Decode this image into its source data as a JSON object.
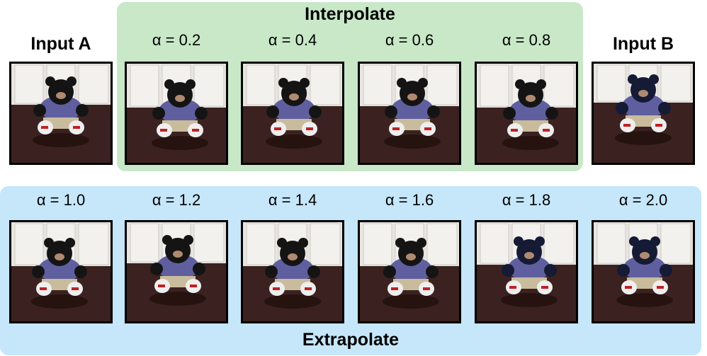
{
  "interpolate": {
    "title": "Interpolate",
    "labels": [
      "α = 0.2",
      "α = 0.4",
      "α = 0.6",
      "α = 0.8"
    ]
  },
  "inputs": {
    "a": "Input A",
    "b": "Input B"
  },
  "extrapolate": {
    "title": "Extrapolate",
    "labels": [
      "α = 1.0",
      "α = 1.2",
      "α = 1.4",
      "α = 1.6",
      "α = 1.8",
      "α = 2.0"
    ]
  },
  "colors": {
    "interpolate_bg": "#c8e8c8",
    "extrapolate_bg": "#c6e6fa"
  }
}
